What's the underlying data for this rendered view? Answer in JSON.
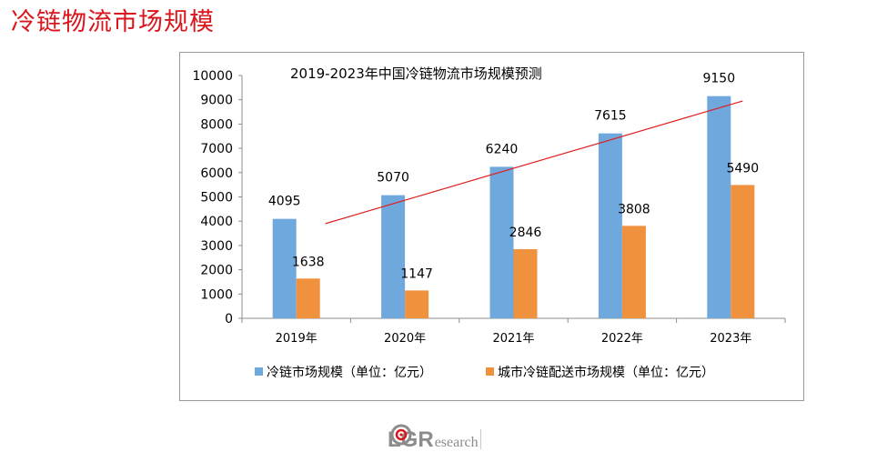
{
  "page": {
    "title": "冷链物流市场规模"
  },
  "logo": {
    "l": "L",
    "g": "G",
    "r": "R",
    "rest": "esearch"
  },
  "colors": {
    "title": "#d9161c",
    "series1": "#6fa8dc",
    "series2": "#f0913e",
    "trend": "#e01f1f"
  },
  "chart_data": {
    "type": "bar",
    "title": "2019-2023年中国冷链物流市场规模预测",
    "categories": [
      "2019年",
      "2020年",
      "2021年",
      "2022年",
      "2023年"
    ],
    "series": [
      {
        "name": "冷链市场规模（单位：亿元）",
        "values": [
          4095,
          5070,
          6240,
          7615,
          9150
        ]
      },
      {
        "name": "城市冷链配送市场规模（单位：亿元）",
        "values": [
          1638,
          1147,
          2846,
          3808,
          5490
        ]
      }
    ],
    "data_labels": {
      "series1": [
        "4095",
        "5070",
        "6240",
        "7615",
        "9150"
      ],
      "series2": [
        "1638",
        "1147",
        "2846",
        "3808",
        "5490"
      ]
    },
    "trendline": {
      "series": 0,
      "start": 3900,
      "end": 8950
    },
    "ylim": [
      0,
      10000
    ],
    "yticks": [
      0,
      1000,
      2000,
      3000,
      4000,
      5000,
      6000,
      7000,
      8000,
      9000,
      10000
    ],
    "ytick_labels": [
      "0",
      "1000",
      "2000",
      "3000",
      "4000",
      "5000",
      "6000",
      "7000",
      "8000",
      "9000",
      "10000"
    ],
    "xlabel": "",
    "ylabel": "",
    "legend_position": "bottom",
    "grid": false
  }
}
